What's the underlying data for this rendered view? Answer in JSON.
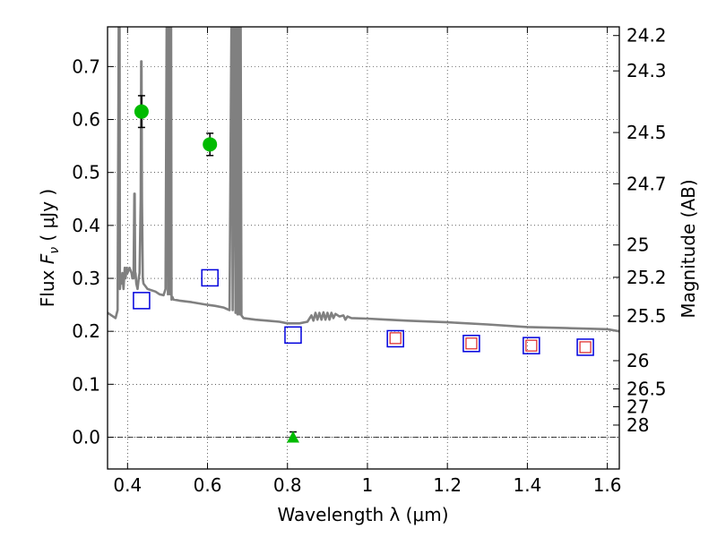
{
  "chart_data": {
    "type": "scatter",
    "title": "",
    "xlabel": "Wavelength  λ (μm)",
    "ylabel": "Flux  F_ν  ( μJy )",
    "ylabel_parts": {
      "prefix": "Flux  ",
      "symbol": "F",
      "subscript": "ν",
      "unit": "  ( μJy )"
    },
    "y2label": "Magnitude (AB)",
    "xlim": [
      0.35,
      1.63
    ],
    "ylim": [
      -0.06,
      0.775
    ],
    "grid": true,
    "x_ticks": [
      {
        "value": 0.4,
        "label": "0.4"
      },
      {
        "value": 0.6,
        "label": "0.6"
      },
      {
        "value": 0.8,
        "label": "0.8"
      },
      {
        "value": 1.0,
        "label": "1"
      },
      {
        "value": 1.2,
        "label": "1.2"
      },
      {
        "value": 1.4,
        "label": "1.4"
      },
      {
        "value": 1.6,
        "label": "1.6"
      }
    ],
    "y_ticks": [
      {
        "value": 0.0,
        "label": "0.0"
      },
      {
        "value": 0.1,
        "label": "0.1"
      },
      {
        "value": 0.2,
        "label": "0.2"
      },
      {
        "value": 0.3,
        "label": "0.3"
      },
      {
        "value": 0.4,
        "label": "0.4"
      },
      {
        "value": 0.5,
        "label": "0.5"
      },
      {
        "value": 0.6,
        "label": "0.6"
      },
      {
        "value": 0.7,
        "label": "0.7"
      }
    ],
    "y2_ticks": [
      {
        "value": 24.2,
        "label": "24.2"
      },
      {
        "value": 24.3,
        "label": "24.3"
      },
      {
        "value": 24.5,
        "label": "24.5"
      },
      {
        "value": 24.7,
        "label": "24.7"
      },
      {
        "value": 25,
        "label": "25"
      },
      {
        "value": 25.2,
        "label": "25.2"
      },
      {
        "value": 25.5,
        "label": "25.5"
      },
      {
        "value": 26,
        "label": "26"
      },
      {
        "value": 26.5,
        "label": "26.5"
      },
      {
        "value": 27,
        "label": "27"
      },
      {
        "value": 28,
        "label": "28"
      }
    ],
    "zero_line": true,
    "detections": {
      "color": "#00bb00",
      "x": [
        0.435,
        0.606
      ],
      "y": [
        0.615,
        0.553
      ],
      "yerr": [
        0.03,
        0.021
      ]
    },
    "upper_limit": {
      "color": "#00bb00",
      "x": [
        0.814
      ],
      "y": [
        0.0
      ],
      "yerr": [
        0.01
      ]
    },
    "model_blue": {
      "color": "#0000dd",
      "x": [
        0.435,
        0.606,
        0.814,
        1.07,
        1.26,
        1.41,
        1.545
      ],
      "y": [
        0.258,
        0.301,
        0.193,
        0.186,
        0.177,
        0.173,
        0.17
      ]
    },
    "model_red": {
      "color": "#dd2222",
      "x": [
        1.07,
        1.26,
        1.41,
        1.545
      ],
      "y": [
        0.187,
        0.177,
        0.173,
        0.17
      ]
    },
    "sed_spectrum": {
      "color": "#808080",
      "x": [
        0.35,
        0.37,
        0.375,
        0.378,
        0.38,
        0.381,
        0.383,
        0.385,
        0.387,
        0.39,
        0.393,
        0.395,
        0.398,
        0.4,
        0.405,
        0.41,
        0.412,
        0.415,
        0.417,
        0.418,
        0.419,
        0.42,
        0.422,
        0.425,
        0.428,
        0.43,
        0.433,
        0.434,
        0.435,
        0.436,
        0.438,
        0.44,
        0.45,
        0.47,
        0.48,
        0.49,
        0.495,
        0.498,
        0.5,
        0.501,
        0.503,
        0.505,
        0.506,
        0.507,
        0.508,
        0.509,
        0.51,
        0.512,
        0.515,
        0.53,
        0.56,
        0.6,
        0.62,
        0.64,
        0.655,
        0.66,
        0.661,
        0.663,
        0.665,
        0.666,
        0.67,
        0.672,
        0.673,
        0.675,
        0.677,
        0.678,
        0.68,
        0.682,
        0.683,
        0.685,
        0.69,
        0.72,
        0.75,
        0.78,
        0.8,
        0.83,
        0.85,
        0.86,
        0.865,
        0.87,
        0.875,
        0.88,
        0.885,
        0.89,
        0.895,
        0.9,
        0.905,
        0.91,
        0.915,
        0.92,
        0.93,
        0.94,
        0.945,
        0.95,
        0.96,
        1.0,
        1.05,
        1.1,
        1.2,
        1.3,
        1.4,
        1.5,
        1.6,
        1.63
      ],
      "y": [
        0.235,
        0.225,
        0.24,
        0.8,
        0.8,
        0.28,
        0.3,
        0.29,
        0.31,
        0.28,
        0.32,
        0.3,
        0.32,
        0.31,
        0.32,
        0.31,
        0.3,
        0.3,
        0.46,
        0.46,
        0.31,
        0.31,
        0.29,
        0.28,
        0.3,
        0.31,
        0.45,
        0.71,
        0.71,
        0.45,
        0.3,
        0.29,
        0.28,
        0.275,
        0.27,
        0.268,
        0.28,
        0.8,
        0.8,
        0.27,
        0.8,
        0.8,
        0.27,
        0.8,
        0.8,
        0.8,
        0.26,
        0.265,
        0.26,
        0.258,
        0.255,
        0.25,
        0.248,
        0.245,
        0.24,
        0.8,
        0.8,
        0.24,
        0.8,
        0.8,
        0.235,
        0.8,
        0.8,
        0.232,
        0.8,
        0.8,
        0.232,
        0.8,
        0.8,
        0.23,
        0.225,
        0.222,
        0.22,
        0.218,
        0.215,
        0.215,
        0.218,
        0.23,
        0.22,
        0.235,
        0.222,
        0.235,
        0.222,
        0.236,
        0.222,
        0.235,
        0.222,
        0.235,
        0.225,
        0.233,
        0.228,
        0.23,
        0.222,
        0.228,
        0.225,
        0.224,
        0.222,
        0.22,
        0.217,
        0.213,
        0.208,
        0.206,
        0.204,
        0.2
      ]
    }
  }
}
